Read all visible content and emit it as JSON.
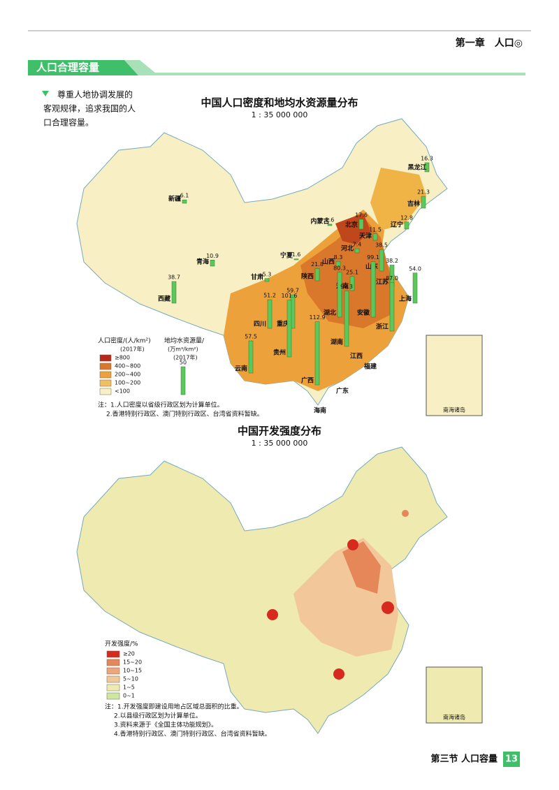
{
  "header": {
    "chapter": "第一章　人口◎",
    "section": "人口合理容量"
  },
  "side_note": [
    "尊重人地协调发展的",
    "客观规律，追求我国的人",
    "口合理容量。"
  ],
  "maps": [
    {
      "title": "中国人口密度和地均水资源量分布",
      "scale": "1 : 35 000 000",
      "legend_title": "人口密度/(人/km²)",
      "legend_year": "(2017年)",
      "density_classes": [
        "≥800",
        "400~800",
        "200~400",
        "100~200",
        "<100"
      ],
      "density_colors": [
        "#b8281a",
        "#d9782a",
        "#eca13a",
        "#f0c060",
        "#f8f0c4"
      ],
      "water_title": "地均水资源量/",
      "water_unit": "(万m³/km²)",
      "water_reference": 50,
      "bar_color": "#5cc85c",
      "provinces": [
        "新疆",
        "西藏",
        "青海",
        "甘肃",
        "内蒙古",
        "黑龙江",
        "吉林",
        "辽宁",
        "北京",
        "天津",
        "河北",
        "山西",
        "宁夏",
        "陕西",
        "山东",
        "河南",
        "江苏",
        "上海",
        "安徽",
        "浙江",
        "湖北",
        "重庆",
        "四川",
        "贵州",
        "湖南",
        "云南",
        "广西"
      ],
      "values": [
        6.1,
        38.7,
        10.9,
        5.3,
        2.6,
        16.3,
        21.3,
        12.8,
        17.6,
        11.5,
        7.4,
        8.3,
        1.6,
        21.8,
        38.5,
        25.1,
        38.2,
        54,
        99.1,
        87,
        80.3,
        59.7,
        51.2,
        101.6,
        99.3,
        57.5,
        112.9
      ],
      "value_labels": [
        "6.1",
        "38.7",
        "10.9",
        "5.3",
        "2.6",
        "16.3",
        "21.3",
        "12.8",
        "17.6",
        "11.5",
        "7.4",
        "8.3",
        "1.6",
        "21.8",
        "38.5",
        "25.1",
        "38.2",
        "54.0",
        "99.1",
        "87.0",
        "80.3",
        "59.7",
        "51.2",
        "101.6",
        "99.3",
        "57.5",
        "112.9"
      ],
      "other_labels": [
        "江西",
        "福建",
        "广东",
        "海南"
      ],
      "inset": "南海诸岛",
      "notes": [
        "注：1.人口密度以省级行政区划为计算单位。",
        "2.香港特别行政区、澳门特别行政区、台湾省资料暂缺。"
      ]
    },
    {
      "title": "中国开发强度分布",
      "scale": "1 : 35 000 000",
      "legend_title": "开发强度/%",
      "classes": [
        "≥20",
        "15~20",
        "10~15",
        "5~10",
        "1~5",
        "0~1"
      ],
      "colors": [
        "#d62a1e",
        "#e6875a",
        "#eda67a",
        "#f2c79a",
        "#eeeab0",
        "#cfe6a0"
      ],
      "inset": "南海诸岛",
      "notes": [
        "注：1.开发强度即建设用地占区域总面积的比重。",
        "2.以县级行政区划为计算单位。",
        "3.资料来源于《全国主体功能规划》。",
        "4.香港特别行政区、澳门特别行政区、台湾省资料暂缺。"
      ]
    }
  ],
  "footer": {
    "section": "第三节 人口容量",
    "page": "13"
  }
}
